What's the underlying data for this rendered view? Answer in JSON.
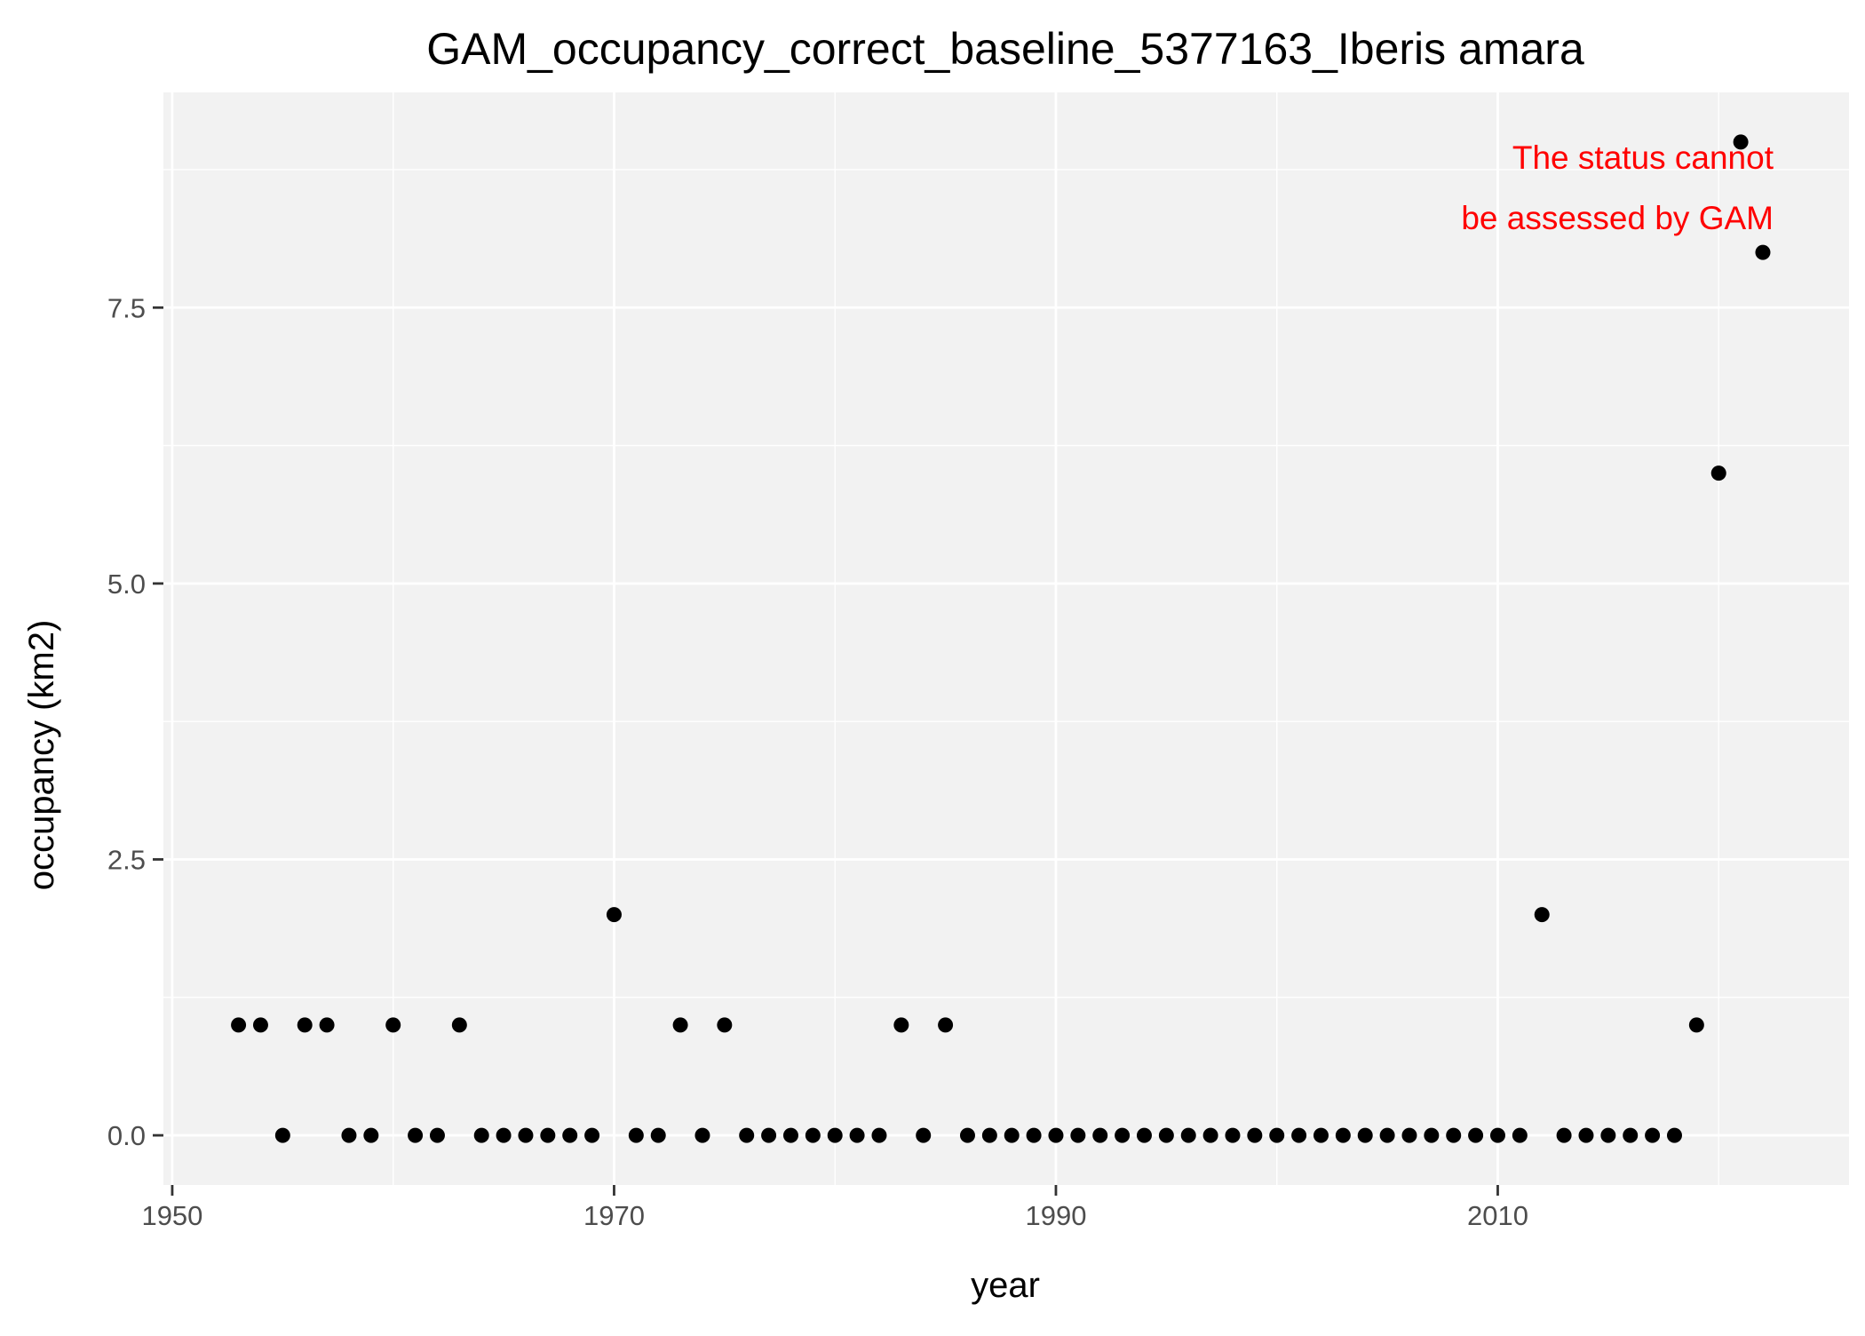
{
  "chart_data": {
    "type": "scatter",
    "title": "GAM_occupancy_correct_baseline_5377163_Iberis amara",
    "xlabel": "year",
    "ylabel": "occupancy (km2)",
    "xlim": [
      1949.6,
      2025.9
    ],
    "ylim": [
      -0.45,
      9.45
    ],
    "xticks": [
      1950,
      1970,
      1990,
      2010
    ],
    "xtick_labels": [
      "1950",
      "1970",
      "1990",
      "2010"
    ],
    "yticks": [
      0,
      2.5,
      5,
      7.5
    ],
    "ytick_labels": [
      "0.0",
      "2.5",
      "5.0",
      "7.5"
    ],
    "x_minor": [
      1960,
      1980,
      2000,
      2020
    ],
    "y_minor": [
      1.25,
      3.75,
      6.25,
      8.75
    ],
    "grid": true,
    "background": "#f2f2f2",
    "grid_color": "#ffffff",
    "point_color": "#000000",
    "annotation": {
      "lines": [
        "The status cannot",
        "be assessed by GAM"
      ],
      "color": "#ff0000",
      "position": "top-right"
    },
    "series": [
      {
        "x": [
          1953,
          1954,
          1955,
          1956,
          1957,
          1958,
          1959,
          1960,
          1961,
          1962,
          1963,
          1964,
          1965,
          1966,
          1967,
          1968,
          1969,
          1970,
          1971,
          1972,
          1973,
          1974,
          1975,
          1976,
          1977,
          1978,
          1979,
          1980,
          1981,
          1982,
          1983,
          1984,
          1985,
          1986,
          1987,
          1988,
          1989,
          1990,
          1991,
          1992,
          1993,
          1994,
          1995,
          1996,
          1997,
          1998,
          1999,
          2000,
          2001,
          2002,
          2003,
          2004,
          2005,
          2006,
          2007,
          2008,
          2009,
          2010,
          2011,
          2012,
          2013,
          2014,
          2015,
          2016,
          2017,
          2018,
          2019,
          2020,
          2021,
          2022
        ],
        "y": [
          1,
          1,
          0,
          1,
          1,
          0,
          0,
          1,
          0,
          0,
          1,
          0,
          0,
          0,
          0,
          0,
          0,
          2,
          0,
          0,
          1,
          0,
          1,
          0,
          0,
          0,
          0,
          0,
          0,
          0,
          1,
          0,
          1,
          0,
          0,
          0,
          0,
          0,
          0,
          0,
          0,
          0,
          0,
          0,
          0,
          0,
          0,
          0,
          0,
          0,
          0,
          0,
          0,
          0,
          0,
          0,
          0,
          0,
          0,
          2,
          0,
          0,
          0,
          0,
          0,
          0,
          1,
          6,
          9,
          8
        ]
      }
    ]
  }
}
